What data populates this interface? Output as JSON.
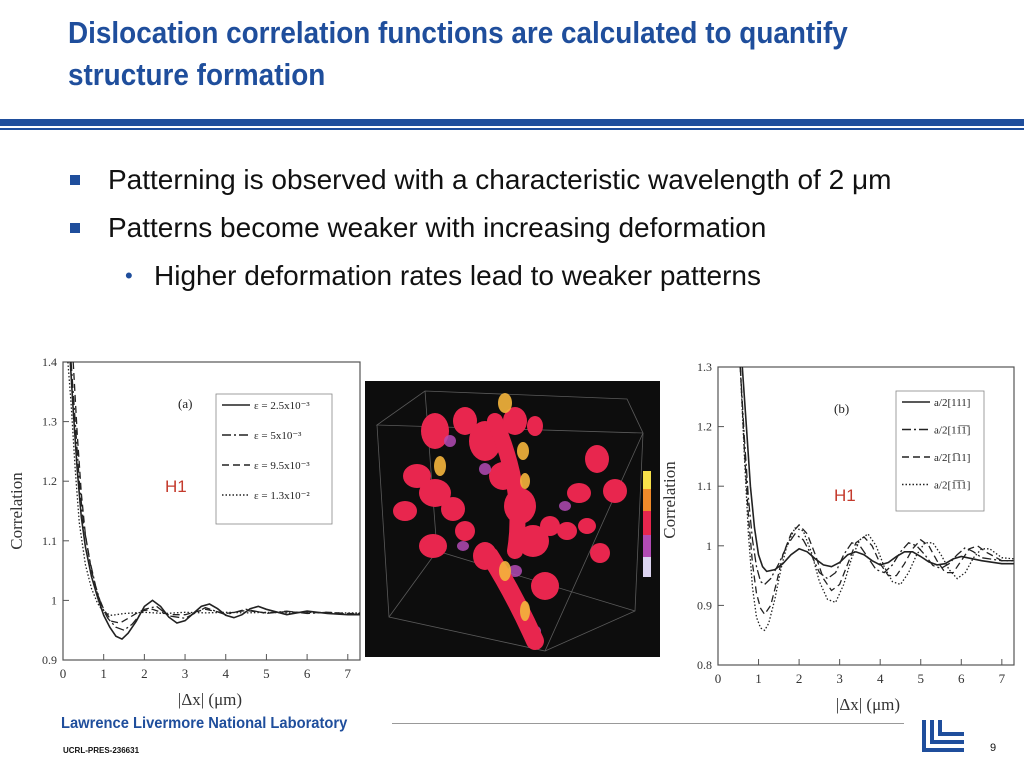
{
  "slide": {
    "title": "Dislocation correlation functions are calculated to quantify structure formation",
    "bullets": [
      "Patterning is observed with a characteristic wavelength of 2 μm",
      "Patterns become weaker with increasing deformation"
    ],
    "sub_bullet": "Higher deformation rates lead to weaker patterns",
    "sub_bullet_marker": "•",
    "footer_lab": "Lawrence Livermore National Laboratory",
    "footer_code": "UCRL-PRES-236631",
    "page_number": "9",
    "accent_color": "#1f4e9c"
  },
  "chart_data": [
    {
      "type": "line",
      "panel_label": "(a)",
      "annotation": "H1",
      "ylabel": "Correlation",
      "xlabel": "|Δx| (μm)",
      "xlim": [
        0,
        7.3
      ],
      "ylim": [
        0.9,
        1.4
      ],
      "xticks": [
        "0",
        "1",
        "2",
        "3",
        "4",
        "5",
        "6",
        "7"
      ],
      "yticks": [
        "0.9",
        "1",
        "1.1",
        "1.2",
        "1.3",
        "1.4"
      ],
      "legend_position": "top-right",
      "series": [
        {
          "name": "ε = 2.5x10⁻³",
          "style": "solid",
          "x": [
            0.18,
            0.25,
            0.35,
            0.45,
            0.55,
            0.7,
            0.85,
            1.0,
            1.15,
            1.3,
            1.45,
            1.6,
            1.8,
            2.0,
            2.2,
            2.4,
            2.6,
            2.8,
            3.0,
            3.2,
            3.4,
            3.6,
            3.8,
            4.0,
            4.2,
            4.4,
            4.6,
            4.8,
            5.0,
            5.5,
            6.0,
            6.5,
            7.0,
            7.3
          ],
          "y": [
            1.4,
            1.32,
            1.22,
            1.14,
            1.09,
            1.04,
            1.005,
            0.975,
            0.955,
            0.94,
            0.935,
            0.945,
            0.965,
            0.99,
            1.0,
            0.99,
            0.972,
            0.962,
            0.966,
            0.978,
            0.99,
            0.994,
            0.986,
            0.975,
            0.971,
            0.976,
            0.986,
            0.99,
            0.985,
            0.976,
            0.982,
            0.978,
            0.976,
            0.976
          ]
        },
        {
          "name": "ε = 5x10⁻³",
          "style": "dashdot",
          "x": [
            0.2,
            0.3,
            0.4,
            0.5,
            0.65,
            0.8,
            0.95,
            1.1,
            1.3,
            1.5,
            1.7,
            2.0,
            2.3,
            2.6,
            3.0,
            3.5,
            4.0,
            4.5,
            5.0,
            5.5,
            6.0,
            6.5,
            7.0,
            7.3
          ],
          "y": [
            1.4,
            1.3,
            1.2,
            1.13,
            1.07,
            1.025,
            0.99,
            0.97,
            0.955,
            0.95,
            0.96,
            0.985,
            0.99,
            0.974,
            0.97,
            0.988,
            0.976,
            0.985,
            0.978,
            0.982,
            0.978,
            0.98,
            0.977,
            0.977
          ]
        },
        {
          "name": "ε = 9.5x10⁻³",
          "style": "dashed",
          "x": [
            0.25,
            0.35,
            0.45,
            0.55,
            0.7,
            0.85,
            1.0,
            1.2,
            1.4,
            1.6,
            1.9,
            2.2,
            2.6,
            3.0,
            3.5,
            4.0,
            4.5,
            5.0,
            5.5,
            6.0,
            6.5,
            7.0,
            7.3
          ],
          "y": [
            1.4,
            1.28,
            1.18,
            1.11,
            1.05,
            1.01,
            0.985,
            0.965,
            0.962,
            0.97,
            0.982,
            0.985,
            0.976,
            0.976,
            0.985,
            0.978,
            0.983,
            0.979,
            0.981,
            0.979,
            0.98,
            0.978,
            0.978
          ]
        },
        {
          "name": "ε = 1.3x10⁻²",
          "style": "dotted",
          "x": [
            0.12,
            0.2,
            0.3,
            0.4,
            0.55,
            0.7,
            0.85,
            1.0,
            1.2,
            1.5,
            2.0,
            2.5,
            3.0,
            3.5,
            4.0,
            4.5,
            5.0,
            5.5,
            6.0,
            6.5,
            7.0,
            7.3
          ],
          "y": [
            1.4,
            1.33,
            1.22,
            1.13,
            1.06,
            1.02,
            0.995,
            0.98,
            0.975,
            0.978,
            0.98,
            0.978,
            0.98,
            0.979,
            0.98,
            0.979,
            0.98,
            0.979,
            0.98,
            0.979,
            0.979,
            0.979
          ]
        }
      ]
    },
    {
      "type": "line",
      "panel_label": "(b)",
      "annotation": "H1",
      "ylabel": "Correlation",
      "xlabel": "|Δx| (μm)",
      "xlim": [
        0,
        7.3
      ],
      "ylim": [
        0.8,
        1.3
      ],
      "xticks": [
        "0",
        "1",
        "2",
        "3",
        "4",
        "5",
        "6",
        "7"
      ],
      "yticks": [
        "0.8",
        "0.9",
        "1",
        "1.1",
        "1.2",
        "1.3"
      ],
      "legend_position": "top-right",
      "series": [
        {
          "name": "a/2[111]",
          "style": "solid",
          "x": [
            0.6,
            0.7,
            0.8,
            0.9,
            1.0,
            1.1,
            1.2,
            1.4,
            1.6,
            1.8,
            2.0,
            2.2,
            2.4,
            2.6,
            2.8,
            3.0,
            3.2,
            3.4,
            3.6,
            3.8,
            4.0,
            4.2,
            4.4,
            4.6,
            4.8,
            5.0,
            5.2,
            5.4,
            5.6,
            5.8,
            6.0,
            6.5,
            7.0,
            7.3
          ],
          "y": [
            1.3,
            1.2,
            1.1,
            1.03,
            0.985,
            0.965,
            0.957,
            0.96,
            0.97,
            0.985,
            0.995,
            0.99,
            0.978,
            0.968,
            0.965,
            0.972,
            0.985,
            0.99,
            0.985,
            0.975,
            0.968,
            0.972,
            0.982,
            0.99,
            0.99,
            0.982,
            0.973,
            0.968,
            0.97,
            0.978,
            0.982,
            0.975,
            0.97,
            0.97
          ]
        },
        {
          "name": "a/2[11̅1̅]",
          "style": "dashdot",
          "x": [
            0.55,
            0.65,
            0.75,
            0.85,
            0.95,
            1.05,
            1.15,
            1.3,
            1.5,
            1.7,
            1.9,
            2.1,
            2.3,
            2.5,
            2.7,
            2.9,
            3.1,
            3.3,
            3.5,
            3.7,
            3.9,
            4.1,
            4.3,
            4.5,
            4.7,
            4.9,
            5.1,
            5.3,
            5.5,
            5.7,
            5.9,
            6.1,
            6.3,
            6.5,
            7.0,
            7.3
          ],
          "y": [
            1.3,
            1.18,
            1.08,
            1.01,
            0.965,
            0.94,
            0.935,
            0.945,
            0.97,
            1.0,
            1.02,
            1.01,
            0.985,
            0.955,
            0.945,
            0.955,
            0.985,
            1.005,
            1.0,
            0.98,
            0.96,
            0.955,
            0.968,
            0.99,
            1.005,
            1.0,
            0.985,
            0.967,
            0.962,
            0.97,
            0.985,
            0.997,
            0.99,
            0.98,
            0.975,
            0.975
          ]
        },
        {
          "name": "a/2[1̅11]",
          "style": "dashed",
          "x": [
            0.55,
            0.65,
            0.75,
            0.85,
            0.95,
            1.05,
            1.15,
            1.3,
            1.45,
            1.6,
            1.8,
            2.0,
            2.2,
            2.4,
            2.6,
            2.8,
            3.0,
            3.2,
            3.4,
            3.6,
            3.8,
            4.0,
            4.2,
            4.4,
            4.6,
            4.8,
            5.0,
            5.2,
            5.4,
            5.6,
            5.8,
            6.0,
            6.2,
            6.4,
            6.6,
            7.0,
            7.3
          ],
          "y": [
            1.3,
            1.16,
            1.05,
            0.97,
            0.92,
            0.895,
            0.885,
            0.9,
            0.94,
            0.985,
            1.02,
            1.035,
            1.02,
            0.985,
            0.945,
            0.925,
            0.935,
            0.97,
            1.005,
            1.015,
            1.0,
            0.97,
            0.95,
            0.95,
            0.97,
            0.995,
            1.01,
            1.0,
            0.975,
            0.955,
            0.955,
            0.975,
            0.995,
            1.0,
            0.99,
            0.975,
            0.975
          ]
        },
        {
          "name": "a/2[1̅1̅1]",
          "style": "dotted",
          "x": [
            0.55,
            0.65,
            0.75,
            0.85,
            0.95,
            1.05,
            1.15,
            1.25,
            1.4,
            1.55,
            1.7,
            1.9,
            2.1,
            2.3,
            2.5,
            2.7,
            2.9,
            3.1,
            3.3,
            3.5,
            3.7,
            3.9,
            4.1,
            4.3,
            4.5,
            4.7,
            4.9,
            5.1,
            5.3,
            5.5,
            5.7,
            5.9,
            6.1,
            6.3,
            6.5,
            6.7,
            7.0,
            7.3
          ],
          "y": [
            1.3,
            1.15,
            1.02,
            0.93,
            0.88,
            0.862,
            0.858,
            0.87,
            0.91,
            0.96,
            1.0,
            1.03,
            1.025,
            0.99,
            0.94,
            0.91,
            0.905,
            0.935,
            0.98,
            1.01,
            1.02,
            1.0,
            0.965,
            0.94,
            0.935,
            0.955,
            0.985,
            1.005,
            1.005,
            0.985,
            0.96,
            0.945,
            0.955,
            0.98,
            0.995,
            0.995,
            0.98,
            0.978
          ]
        }
      ]
    }
  ]
}
